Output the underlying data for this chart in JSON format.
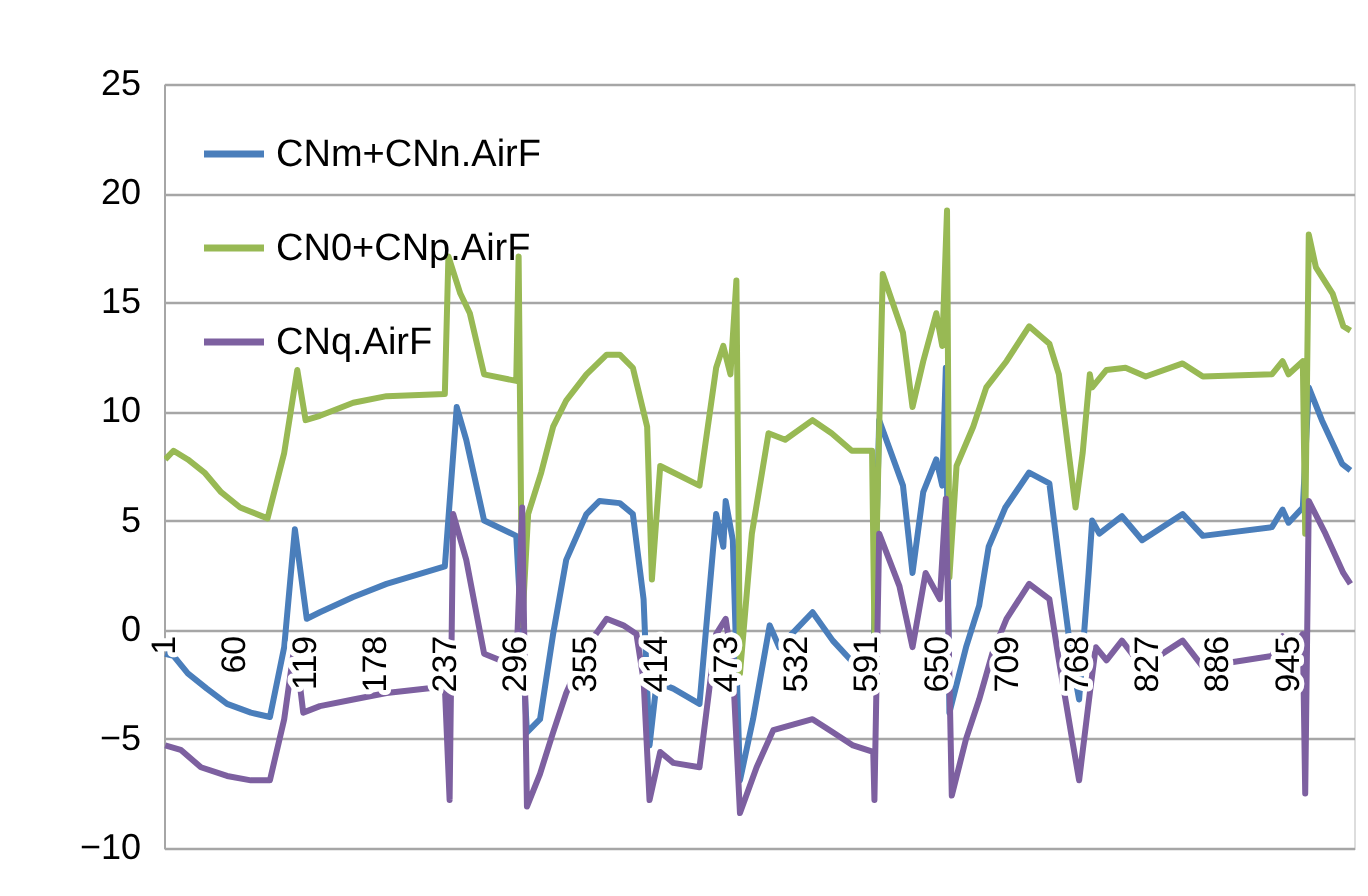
{
  "chart_data": {
    "type": "line",
    "xlim": [
      0,
      1000
    ],
    "xticks": [
      1,
      60,
      119,
      178,
      237,
      296,
      355,
      414,
      473,
      532,
      591,
      650,
      709,
      768,
      827,
      886,
      945
    ],
    "ylim": [
      -10,
      25
    ],
    "yticks": [
      -10,
      -5,
      0,
      5,
      10,
      15,
      20,
      25
    ],
    "grid": "y",
    "legend": "top left",
    "line_style": "solid",
    "marker": "none",
    "series": [
      {
        "name": "CNm+CNn.AirF",
        "color": "#4a7ebb",
        "x": [
          1,
          8,
          20,
          36,
          53,
          73,
          89,
          101,
          110,
          120,
          131,
          159,
          187,
          236,
          246,
          254,
          269,
          296,
          305,
          316,
          327,
          338,
          355,
          366,
          383,
          394,
          403,
          408,
          414,
          428,
          450,
          464,
          470,
          472,
          478,
          484,
          495,
          509,
          517,
          545,
          562,
          579,
          596,
          601,
          621,
          629,
          638,
          649,
          654,
          657,
          660,
          674,
          685,
          693,
          707,
          727,
          744,
          752,
          763,
          769,
          777,
          780,
          786,
          805,
          822,
          856,
          873,
          931,
          940,
          945,
          957,
          962,
          973,
          990,
          997
        ],
        "values": [
          -1.1,
          -1.2,
          -2.0,
          -2.7,
          -3.4,
          -3.8,
          -4.0,
          -0.8,
          4.6,
          0.5,
          0.8,
          1.5,
          2.1,
          2.9,
          10.2,
          8.7,
          5.0,
          4.3,
          -4.7,
          -4.1,
          -0.2,
          3.2,
          5.3,
          5.9,
          5.8,
          5.3,
          1.4,
          -5.3,
          -2.4,
          -2.7,
          -3.4,
          5.3,
          3.8,
          5.9,
          4.1,
          -6.9,
          -4.1,
          0.2,
          -0.8,
          0.8,
          -0.5,
          -1.5,
          -1.7,
          9.6,
          6.6,
          2.6,
          6.3,
          7.8,
          6.6,
          12.0,
          -3.8,
          -0.8,
          1.1,
          3.8,
          5.6,
          7.2,
          6.7,
          3.2,
          -1.4,
          -3.2,
          2.6,
          5.0,
          4.4,
          5.2,
          4.1,
          5.3,
          4.3,
          4.7,
          5.5,
          4.9,
          5.6,
          11.1,
          9.6,
          7.6,
          7.3
        ]
      },
      {
        "name": "CN0+CNp.AirF",
        "color": "#98b954",
        "x": [
          1,
          8,
          20,
          34,
          48,
          64,
          87,
          101,
          112,
          119,
          131,
          159,
          187,
          236,
          239,
          249,
          257,
          269,
          296,
          298,
          301,
          306,
          317,
          327,
          338,
          355,
          372,
          383,
          394,
          406,
          410,
          417,
          428,
          450,
          464,
          470,
          476,
          481,
          484,
          494,
          508,
          522,
          545,
          561,
          578,
          595,
          597,
          604,
          621,
          629,
          638,
          649,
          654,
          658,
          660,
          666,
          680,
          691,
          708,
          727,
          744,
          752,
          766,
          772,
          778,
          780,
          792,
          808,
          825,
          856,
          873,
          931,
          940,
          945,
          957,
          959,
          962,
          968,
          982,
          991,
          997
        ],
        "values": [
          7.8,
          8.2,
          7.8,
          7.2,
          6.3,
          5.6,
          5.1,
          8.1,
          11.9,
          9.6,
          9.8,
          10.4,
          10.7,
          10.8,
          17.1,
          15.4,
          14.5,
          11.7,
          11.4,
          17.1,
          0.2,
          5.3,
          7.2,
          9.3,
          10.5,
          11.7,
          12.6,
          12.6,
          12.0,
          9.3,
          2.3,
          7.5,
          7.2,
          6.6,
          12.0,
          13.0,
          11.7,
          16.0,
          -2.0,
          4.4,
          9.0,
          8.7,
          9.6,
          9.0,
          8.2,
          8.2,
          -0.2,
          16.3,
          13.6,
          10.2,
          12.3,
          14.5,
          13.0,
          19.2,
          2.4,
          7.5,
          9.3,
          11.1,
          12.3,
          13.9,
          13.1,
          11.7,
          5.6,
          8.1,
          11.7,
          11.1,
          11.9,
          12.0,
          11.6,
          12.2,
          11.6,
          11.7,
          12.3,
          11.7,
          12.3,
          4.4,
          18.1,
          16.6,
          15.4,
          13.9,
          13.7
        ]
      },
      {
        "name": "CNq.AirF",
        "color": "#7d60a0",
        "x": [
          1,
          14,
          31,
          53,
          73,
          89,
          101,
          110,
          117,
          131,
          159,
          187,
          236,
          240,
          243,
          254,
          269,
          296,
          301,
          305,
          316,
          327,
          338,
          355,
          372,
          386,
          397,
          403,
          408,
          417,
          428,
          450,
          464,
          472,
          478,
          484,
          498,
          512,
          545,
          562,
          579,
          596,
          597,
          601,
          618,
          629,
          640,
          652,
          657,
          662,
          674,
          685,
          696,
          708,
          727,
          744,
          752,
          764,
          769,
          778,
          783,
          792,
          805,
          822,
          856,
          873,
          931,
          940,
          945,
          957,
          959,
          962,
          976,
          991,
          997
        ],
        "values": [
          -5.3,
          -5.5,
          -6.3,
          -6.7,
          -6.9,
          -6.9,
          -4.1,
          -0.6,
          -3.8,
          -3.5,
          -3.2,
          -2.9,
          -2.6,
          -7.8,
          5.3,
          3.2,
          -1.1,
          -1.7,
          5.6,
          -8.1,
          -6.6,
          -4.7,
          -2.9,
          -0.8,
          0.5,
          0.2,
          -0.2,
          -2.3,
          -7.8,
          -5.6,
          -6.1,
          -6.3,
          -0.2,
          0.5,
          -1.7,
          -8.4,
          -6.3,
          -4.6,
          -4.1,
          -4.7,
          -5.3,
          -5.6,
          -7.8,
          4.4,
          2.0,
          -0.8,
          2.6,
          1.4,
          6.0,
          -7.6,
          -5.0,
          -3.2,
          -1.1,
          0.5,
          2.1,
          1.4,
          -1.4,
          -5.3,
          -6.9,
          -2.9,
          -0.8,
          -1.4,
          -0.5,
          -1.7,
          -0.5,
          -1.7,
          -1.2,
          -0.3,
          -1.1,
          -0.2,
          -7.5,
          5.9,
          4.4,
          2.6,
          2.1
        ]
      }
    ]
  }
}
